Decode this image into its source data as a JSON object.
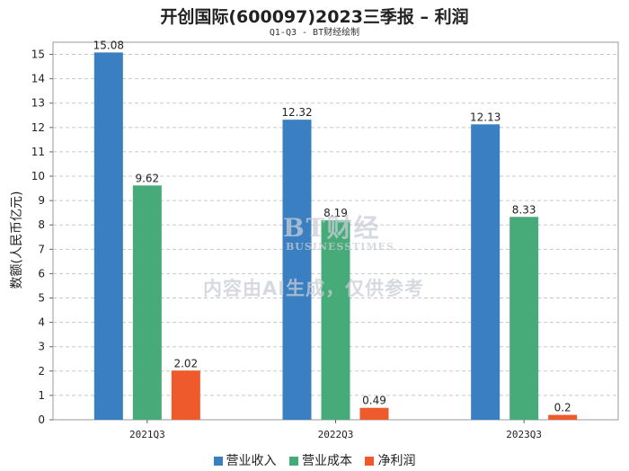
{
  "header": {
    "title": "开创国际(600097)2023三季报 – 利润",
    "subtitle": "Q1-Q3 - BT财经绘制"
  },
  "watermark": {
    "brand": "BT财经",
    "brand_sub": "BUSINESSTIMES",
    "notice": "内容由AI生成，仅供参考"
  },
  "chart_data": {
    "type": "bar",
    "title": "开创国际(600097)2023三季报 – 利润",
    "subtitle": "Q1-Q3 - BT财经绘制",
    "xlabel": "",
    "ylabel": "数额(人民币亿元)",
    "categories": [
      "2021Q3",
      "2022Q3",
      "2023Q3"
    ],
    "series": [
      {
        "name": "营业收入",
        "color": "#3a7fc1",
        "values": [
          15.08,
          12.32,
          12.13
        ]
      },
      {
        "name": "营业成本",
        "color": "#46ab78",
        "values": [
          9.62,
          8.19,
          8.33
        ]
      },
      {
        "name": "净利润",
        "color": "#ee5a2b",
        "values": [
          2.02,
          0.49,
          0.2
        ]
      }
    ],
    "ylim": [
      0,
      15.5
    ],
    "yticks": [
      0,
      1,
      2,
      3,
      4,
      5,
      6,
      7,
      8,
      9,
      10,
      11,
      12,
      13,
      14,
      15
    ],
    "grid": true,
    "legend": "bottom-center"
  }
}
